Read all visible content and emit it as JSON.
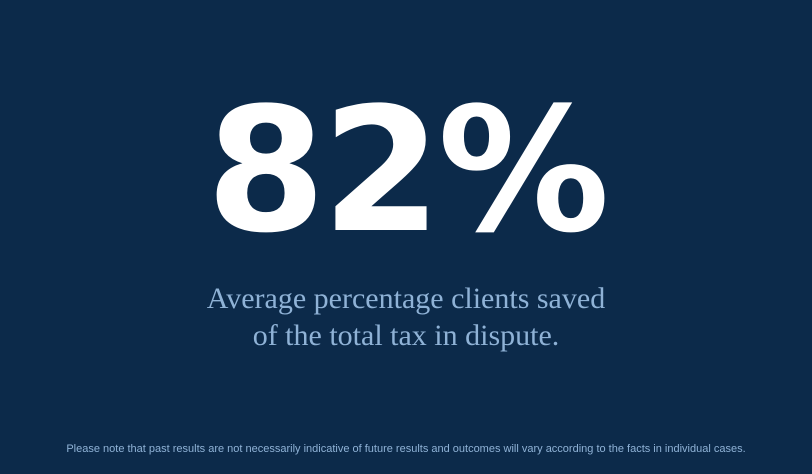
{
  "stat": {
    "value": "82%",
    "caption_line1": "Average percentage clients saved",
    "caption_line2": "of the total tax in dispute."
  },
  "disclaimer": "Please note that past results are not necessarily indicative of future results and outcomes will vary according to the facts in individual cases.",
  "colors": {
    "background": "#0c2a4a",
    "stat_text": "#ffffff",
    "caption_text": "#8fb2d6"
  }
}
